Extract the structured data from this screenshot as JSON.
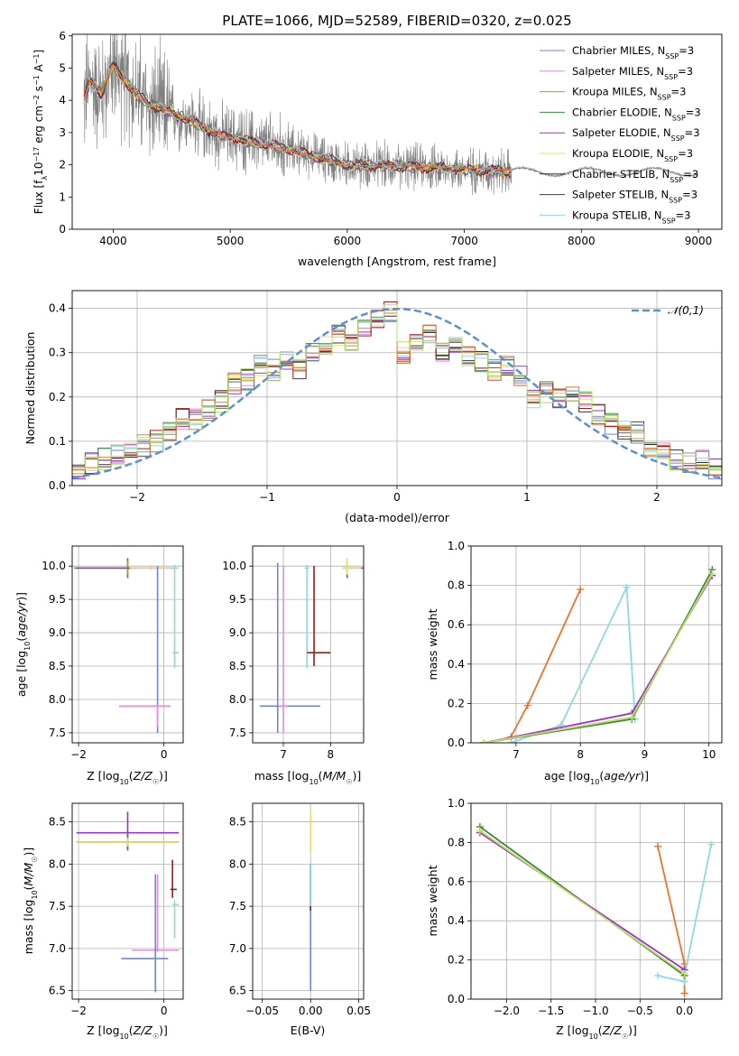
{
  "figure_title": "PLATE=1066, MJD=52589, FIBERID=0320, z=0.025",
  "colors": {
    "spectrum": "#808080",
    "gaussian": "#5b8fd9",
    "models": [
      "#6f86d6",
      "#e58fd0",
      "#c8902a",
      "#3e8a3e",
      "#9b35c8",
      "#e8e060",
      "#333333",
      "#9a1a1a",
      "#8fd8e0"
    ],
    "extra_hist": [
      "#e8742c",
      "#b0e070"
    ],
    "weights": [
      "#e8742c",
      "#8fd8e0",
      "#3e8a3e",
      "#9b35c8",
      "#c0e060"
    ]
  },
  "chart_data": [
    {
      "id": "spectrum",
      "type": "line",
      "title": "PLATE=1066, MJD=52589, FIBERID=0320, z=0.025",
      "xlabel": "wavelength [Angstrom, rest frame]",
      "ylabel_parts": [
        "Flux [f",
        "λ",
        "10",
        "−17",
        " erg cm",
        "−2",
        " s",
        "−1",
        " A",
        "−1",
        "]"
      ],
      "xlim": [
        3650,
        9200
      ],
      "ylim": [
        0,
        6.05
      ],
      "xticks": [
        "4000",
        "5000",
        "6000",
        "7000",
        "8000",
        "9000"
      ],
      "yticks": [
        "0",
        "1",
        "2",
        "3",
        "4",
        "5",
        "6"
      ],
      "legend_position": "top-right",
      "series": [
        {
          "name": "Chabrier MILES",
          "sub": "SSP",
          "suffix": "=3"
        },
        {
          "name": "Salpeter MILES",
          "sub": "SSP",
          "suffix": "=3"
        },
        {
          "name": "Kroupa MILES",
          "sub": "SSP",
          "suffix": "=3"
        },
        {
          "name": "Chabrier ELODIE",
          "sub": "SSP",
          "suffix": "=3"
        },
        {
          "name": "Salpeter ELODIE",
          "sub": "SSP",
          "suffix": "=3"
        },
        {
          "name": "Kroupa ELODIE",
          "sub": "SSP",
          "suffix": "=3"
        },
        {
          "name": "Chabrier STELIB",
          "sub": "SSP",
          "suffix": "=3"
        },
        {
          "name": "Salpeter STELIB",
          "sub": "SSP",
          "suffix": "=3"
        },
        {
          "name": "Kroupa STELIB",
          "sub": "SSP",
          "suffix": "=3"
        }
      ],
      "model_curve": {
        "x": [
          3750,
          3800,
          3900,
          4000,
          4100,
          4200,
          4300,
          4500,
          4700,
          4850,
          5000,
          5500,
          6000,
          6500,
          7000,
          7400
        ],
        "y": [
          4.0,
          4.6,
          4.2,
          5.1,
          4.6,
          4.2,
          3.9,
          3.6,
          3.3,
          3.0,
          2.85,
          2.5,
          2.0,
          1.95,
          1.85,
          1.8
        ]
      },
      "spectrum_range": [
        3750,
        9000
      ]
    },
    {
      "id": "residuals",
      "type": "histogram",
      "xlabel": "(data-model)/error",
      "ylabel": "Normed distribution",
      "xlim": [
        -2.5,
        2.5
      ],
      "ylim": [
        0,
        0.44
      ],
      "xticks": [
        "−2",
        "−1",
        "0",
        "1",
        "2"
      ],
      "yticks": [
        "0.0",
        "0.1",
        "0.2",
        "0.3",
        "0.4"
      ],
      "legend": [
        "𝒩(0,1)"
      ],
      "legend_position": "top-right",
      "grid": true,
      "bins": [
        -2.5,
        -2.4,
        -2.3,
        -2.2,
        -2.1,
        -2.0,
        -1.9,
        -1.8,
        -1.7,
        -1.6,
        -1.5,
        -1.4,
        -1.3,
        -1.2,
        -1.1,
        -1.0,
        -0.9,
        -0.8,
        -0.7,
        -0.6,
        -0.5,
        -0.4,
        -0.3,
        -0.2,
        -0.1,
        0.0,
        0.1,
        0.2,
        0.3,
        0.4,
        0.5,
        0.6,
        0.7,
        0.8,
        0.9,
        1.0,
        1.1,
        1.2,
        1.3,
        1.4,
        1.5,
        1.6,
        1.7,
        1.8,
        1.9,
        2.0,
        2.1,
        2.2,
        2.3,
        2.4,
        2.5
      ],
      "base_heights": [
        0.04,
        0.05,
        0.06,
        0.07,
        0.08,
        0.09,
        0.1,
        0.12,
        0.15,
        0.15,
        0.17,
        0.19,
        0.23,
        0.24,
        0.27,
        0.26,
        0.28,
        0.26,
        0.3,
        0.32,
        0.34,
        0.32,
        0.35,
        0.38,
        0.39,
        0.3,
        0.33,
        0.34,
        0.3,
        0.31,
        0.29,
        0.28,
        0.26,
        0.27,
        0.25,
        0.2,
        0.21,
        0.2,
        0.21,
        0.19,
        0.16,
        0.14,
        0.13,
        0.12,
        0.09,
        0.08,
        0.06,
        0.05,
        0.06,
        0.04
      ]
    },
    {
      "id": "age_vs_Z",
      "type": "scatter",
      "xlabel_parts": [
        "Z [log",
        "10",
        "(",
        "Z/Z",
        "☉",
        ")]"
      ],
      "ylabel_parts": [
        "age  [log",
        "10",
        "(",
        "age/yr",
        ")]"
      ],
      "xlim": [
        -2.15,
        0.45
      ],
      "ylim": [
        7.35,
        10.3
      ],
      "xticks": [
        -2,
        0
      ],
      "xtick_labels": [
        "−2",
        "0"
      ],
      "yticks": [
        7.5,
        8.0,
        8.5,
        9.0,
        9.5,
        10.0
      ],
      "ytick_labels": [
        "7.5",
        "8.0",
        "8.5",
        "9.0",
        "9.5",
        "10.0"
      ],
      "grid": true,
      "points": [
        {
          "x": -0.85,
          "y": 9.97,
          "xerr": [
            1.2,
            0.2
          ],
          "yerr": [
            0.15,
            0.15
          ],
          "color": 3
        },
        {
          "x": -0.85,
          "y": 9.97,
          "xerr": [
            1.2,
            0.1
          ],
          "yerr": [
            0.1,
            0.1
          ],
          "color": 2
        },
        {
          "x": -0.3,
          "y": 9.97,
          "xerr": [
            1.8,
            0.5
          ],
          "yerr": [
            0.02,
            0.02
          ],
          "color": 4
        },
        {
          "x": -0.3,
          "y": 9.97,
          "xerr": [
            0.5,
            0.6
          ],
          "yerr": [
            0.02,
            0.02
          ],
          "color": 5
        },
        {
          "x": 0.25,
          "y": 9.97,
          "xerr": [
            0.1,
            0.1
          ],
          "yerr": [
            1.5,
            0.05
          ],
          "color": 8
        },
        {
          "x": 0.25,
          "y": 8.7,
          "xerr": [
            0.05,
            0.1
          ],
          "yerr": [
            0.2,
            0.02
          ],
          "color": 8
        },
        {
          "x": -0.15,
          "y": 7.9,
          "xerr": [
            0.9,
            0.3
          ],
          "yerr": [
            0.4,
            2.1
          ],
          "color": 0
        },
        {
          "x": -0.15,
          "y": 7.9,
          "xerr": [
            0.9,
            0.3
          ],
          "yerr": [
            0.3,
            0.02
          ],
          "color": 1
        }
      ]
    },
    {
      "id": "age_vs_mass",
      "type": "scatter",
      "xlabel_parts": [
        "mass [log",
        "10",
        "(",
        "M/M",
        "☉",
        ")]"
      ],
      "ylim": [
        7.35,
        10.3
      ],
      "xlim": [
        6.35,
        8.7
      ],
      "xticks": [
        7,
        8
      ],
      "xtick_labels": [
        "7",
        "8"
      ],
      "yticks": [
        7.5,
        8.0,
        8.5,
        9.0,
        9.5,
        10.0
      ],
      "ytick_labels": [
        "7.5",
        "8.0",
        "8.5",
        "9.0",
        "9.5",
        "10.0"
      ],
      "grid": true,
      "points": [
        {
          "x": 6.88,
          "y": 7.9,
          "xerr": [
            0.38,
            0.9
          ],
          "yerr": [
            0.4,
            2.15
          ],
          "color": 0
        },
        {
          "x": 7.0,
          "y": 7.9,
          "xerr": [
            0.1,
            0.1
          ],
          "yerr": [
            0.4,
            2.1
          ],
          "color": 1
        },
        {
          "x": 7.5,
          "y": 9.97,
          "xerr": [
            0.05,
            0.05
          ],
          "yerr": [
            1.5,
            0.05
          ],
          "color": 8
        },
        {
          "x": 7.65,
          "y": 8.7,
          "xerr": [
            0.15,
            0.35
          ],
          "yerr": [
            0.2,
            1.3
          ],
          "color": 7
        },
        {
          "x": 8.35,
          "y": 9.97,
          "xerr": [
            0.1,
            0.6
          ],
          "yerr": [
            0.15,
            0.1
          ],
          "color": 4
        },
        {
          "x": 8.35,
          "y": 9.97,
          "xerr": [
            0.1,
            0.3
          ],
          "yerr": [
            0.1,
            0.15
          ],
          "color": 5
        }
      ]
    },
    {
      "id": "weight_vs_age",
      "type": "line",
      "xlabel_parts": [
        "age  [log",
        "10",
        "(",
        "age/yr",
        ")]"
      ],
      "ylabel": "mass weight",
      "xlim": [
        6.3,
        10.2
      ],
      "ylim": [
        0,
        1.0
      ],
      "xticks": [
        7,
        8,
        9,
        10
      ],
      "xtick_labels": [
        "7",
        "8",
        "9",
        "10"
      ],
      "yticks": [
        0,
        0.2,
        0.4,
        0.6,
        0.8,
        1.0
      ],
      "ytick_labels": [
        "0.0",
        "0.2",
        "0.4",
        "0.6",
        "0.8",
        "1.0"
      ],
      "grid": true,
      "series": [
        {
          "color": 0,
          "x": [
            6.92,
            7.18,
            8.0
          ],
          "y": [
            0.03,
            0.19,
            0.78
          ]
        },
        {
          "color": 8,
          "x": [
            6.92,
            7.7,
            8.72,
            8.85
          ],
          "y": [
            0.0,
            0.09,
            0.79,
            0.12
          ]
        },
        {
          "color": 3,
          "x": [
            6.5,
            8.8,
            10.05
          ],
          "y": [
            0.0,
            0.12,
            0.88
          ]
        },
        {
          "color": 4,
          "x": [
            6.5,
            8.8,
            10.05
          ],
          "y": [
            0.0,
            0.15,
            0.85
          ]
        },
        {
          "color": 5,
          "x": [
            6.5,
            8.8,
            10.05
          ],
          "y": [
            0.0,
            0.13,
            0.86
          ]
        }
      ]
    },
    {
      "id": "mass_vs_Z",
      "type": "scatter",
      "xlabel_parts": [
        "Z [log",
        "10",
        "(",
        "Z/Z",
        "☉",
        ")]"
      ],
      "ylabel_parts": [
        "mass [log",
        "10",
        "(",
        "M/M",
        "☉",
        ")]"
      ],
      "xlim": [
        -2.15,
        0.45
      ],
      "ylim": [
        6.4,
        8.72
      ],
      "xticks": [
        -2,
        0
      ],
      "xtick_labels": [
        "−2",
        "0"
      ],
      "yticks": [
        6.5,
        7.0,
        7.5,
        8.0,
        8.5
      ],
      "ytick_labels": [
        "6.5",
        "7.0",
        "7.5",
        "8.0",
        "8.5"
      ],
      "grid": true,
      "points": [
        {
          "x": -0.85,
          "y": 8.37,
          "xerr": [
            1.2,
            1.2
          ],
          "yerr": [
            0.2,
            0.25
          ],
          "color": 4
        },
        {
          "x": -0.85,
          "y": 8.26,
          "xerr": [
            1.2,
            1.2
          ],
          "yerr": [
            0.1,
            0.1
          ],
          "color": 3
        },
        {
          "x": -0.85,
          "y": 8.26,
          "xerr": [
            1.2,
            1.2
          ],
          "yerr": [
            0.05,
            0.05
          ],
          "color": 5
        },
        {
          "x": 0.2,
          "y": 7.7,
          "xerr": [
            0.05,
            0.1
          ],
          "yerr": [
            0.1,
            0.35
          ],
          "color": 7
        },
        {
          "x": 0.25,
          "y": 7.52,
          "xerr": [
            0.05,
            0.1
          ],
          "yerr": [
            0.4,
            0.05
          ],
          "color": 8
        },
        {
          "x": -0.15,
          "y": 6.98,
          "xerr": [
            0.6,
            0.5
          ],
          "yerr": [
            0.02,
            0.9
          ],
          "color": 1
        },
        {
          "x": -0.2,
          "y": 6.88,
          "xerr": [
            0.8,
            0.3
          ],
          "yerr": [
            0.4,
            1.0
          ],
          "color": 0
        }
      ]
    },
    {
      "id": "mass_vs_EBV",
      "type": "scatter",
      "xlabel": "E(B-V)",
      "xlim": [
        -0.06,
        0.055
      ],
      "ylim": [
        6.4,
        8.72
      ],
      "xticks": [
        -0.05,
        0,
        0.05
      ],
      "xtick_labels": [
        "−0.05",
        "0.00",
        "0.05"
      ],
      "yticks": [
        6.5,
        7.0,
        7.5,
        8.0,
        8.5
      ],
      "ytick_labels": [
        "6.5",
        "7.0",
        "7.5",
        "8.0",
        "8.5"
      ],
      "grid": true,
      "segments": [
        {
          "x": 0,
          "y0": 6.5,
          "y1": 8.0,
          "color": 0
        },
        {
          "x": 0,
          "y0": 7.45,
          "y1": 8.0,
          "color": 6
        },
        {
          "x": 0,
          "y0": 7.5,
          "y1": 8.0,
          "color": 8
        },
        {
          "x": 0,
          "y0": 8.15,
          "y1": 8.65,
          "color": 5
        }
      ]
    },
    {
      "id": "weight_vs_Z",
      "type": "line",
      "xlabel_parts": [
        "Z [log",
        "10",
        "(",
        "Z/Z",
        "☉",
        ")]"
      ],
      "ylabel": "mass weight",
      "xlim": [
        -2.4,
        0.42
      ],
      "ylim": [
        0,
        1.0
      ],
      "xticks": [
        -2.0,
        -1.5,
        -1.0,
        -0.5,
        0.0
      ],
      "xtick_labels": [
        "−2.0",
        "−1.5",
        "−1.0",
        "−0.5",
        "0.0"
      ],
      "yticks": [
        0,
        0.2,
        0.4,
        0.6,
        0.8,
        1.0
      ],
      "ytick_labels": [
        "0.0",
        "0.2",
        "0.4",
        "0.6",
        "0.8",
        "1.0"
      ],
      "grid": true,
      "series": [
        {
          "color": 0,
          "x": [
            -0.3,
            0.0,
            0.0
          ],
          "y": [
            0.78,
            0.18,
            0.03
          ]
        },
        {
          "color": 8,
          "x": [
            -0.3,
            0.0,
            0.0,
            0.3
          ],
          "y": [
            0.12,
            0.09,
            0.12,
            0.79
          ]
        },
        {
          "color": 3,
          "x": [
            -2.3,
            0.0
          ],
          "y": [
            0.88,
            0.12
          ]
        },
        {
          "color": 4,
          "x": [
            -2.3,
            0.0
          ],
          "y": [
            0.85,
            0.15
          ]
        },
        {
          "color": 5,
          "x": [
            -2.3,
            0.0
          ],
          "y": [
            0.86,
            0.13
          ]
        }
      ]
    }
  ]
}
